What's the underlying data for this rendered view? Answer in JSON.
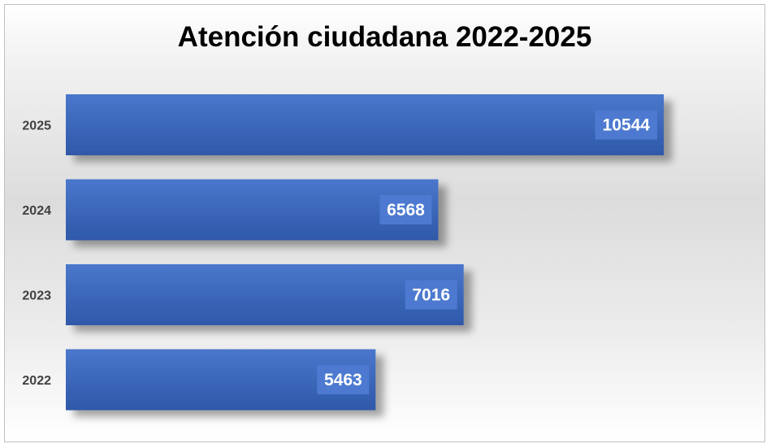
{
  "chart_data": {
    "type": "bar",
    "orientation": "horizontal",
    "title": "Atención ciudadana 2022-2025",
    "categories": [
      "2025",
      "2024",
      "2023",
      "2022"
    ],
    "values": [
      10544,
      6568,
      7016,
      5463
    ],
    "xlim": [
      0,
      12000
    ],
    "grid": false,
    "legend": "none",
    "data_labels": true,
    "colors": {
      "bar_top": "#4a77cc",
      "bar_bottom": "#2f58a8",
      "label_box": "#4d7ad0",
      "label_text": "#ffffff",
      "category_text": "#404040"
    }
  }
}
